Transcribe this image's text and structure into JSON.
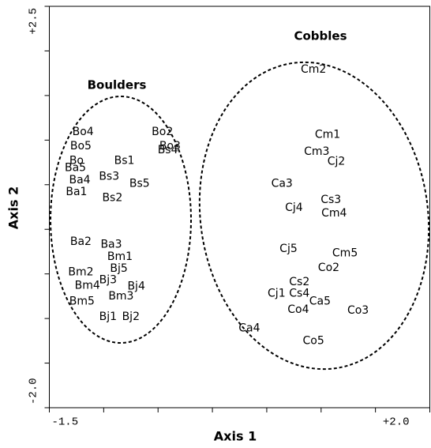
{
  "chart_data": {
    "type": "scatter",
    "x_label": "Axis 1",
    "y_label": "Axis 2",
    "xlim": [
      -1.5,
      2.0
    ],
    "ylim": [
      -2.0,
      2.5
    ],
    "xticks": [
      -1.5,
      {
        "value": 2.0,
        "label": "+2.0"
      }
    ],
    "yticks": [
      {
        "value": 2.5,
        "label": "+2.5"
      },
      {
        "value": -2.0,
        "label": "-2.0"
      }
    ],
    "xminorticks": [
      -1.0,
      -0.5,
      0,
      0.5,
      1.0,
      1.5
    ],
    "yminorticks": [
      2.0,
      1.5,
      1.0,
      0.5,
      0,
      -0.5,
      -1.0,
      -1.5
    ],
    "annotations": [
      "Boulders",
      "Cobbles"
    ],
    "point_labels": [
      "Bo4",
      "Bo2",
      "Bo5",
      "Bs4",
      "Bo3",
      "Bo",
      "Bs1",
      "Ba5",
      "Bs3",
      "Ba4",
      "Ba1",
      "Bs5",
      "Bs2",
      "Ba2",
      "Ba3",
      "Bm1",
      "Bj5",
      "Bm2",
      "Bj3",
      "Bm4",
      "Bj4",
      "Bm3",
      "Bm5",
      "Bj1",
      "Bj2",
      "Cm2",
      "Cm1",
      "Cm3",
      "Cj2",
      "Ca3",
      "Cs3",
      "Cj4",
      "Cm4",
      "Cj5",
      "Cm5",
      "Co2",
      "Cs2",
      "Cj1",
      "Cs4",
      "Ca5",
      "Co4",
      "Co3",
      "Ca4",
      "Co5"
    ],
    "x": [
      -1.19,
      -0.46,
      -1.21,
      -0.41,
      -0.39,
      -1.25,
      -0.81,
      -1.26,
      -0.95,
      -1.22,
      -1.25,
      -0.67,
      -0.92,
      -1.21,
      -0.93,
      -0.85,
      -0.86,
      -1.21,
      -0.96,
      -1.15,
      -0.7,
      -0.84,
      -1.2,
      -0.96,
      -0.75,
      0.93,
      1.06,
      0.96,
      1.14,
      0.64,
      1.09,
      0.75,
      1.12,
      0.7,
      1.22,
      1.07,
      0.8,
      0.59,
      0.8,
      0.99,
      0.79,
      1.34,
      0.34,
      0.93
    ],
    "values": [
      1.09,
      1.09,
      0.93,
      0.89,
      0.93,
      0.77,
      0.77,
      0.69,
      0.59,
      0.55,
      0.42,
      0.51,
      0.35,
      -0.14,
      -0.17,
      -0.31,
      -0.44,
      -0.48,
      -0.57,
      -0.63,
      -0.64,
      -0.75,
      -0.81,
      -0.98,
      -0.98,
      1.79,
      1.06,
      0.87,
      0.76,
      0.51,
      0.33,
      0.24,
      0.18,
      -0.22,
      -0.27,
      -0.43,
      -0.59,
      -0.72,
      -0.72,
      -0.81,
      -0.9,
      -0.91,
      -1.11,
      -1.25
    ]
  }
}
